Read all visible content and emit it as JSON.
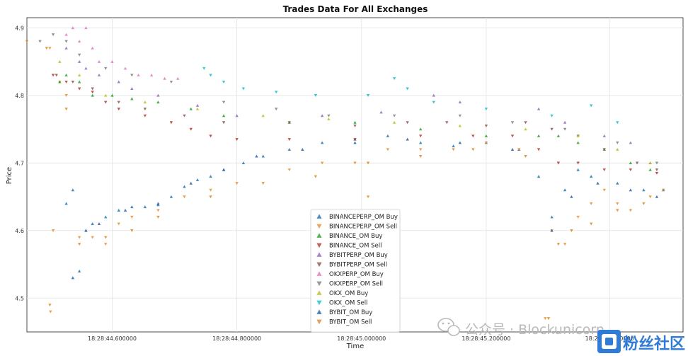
{
  "chart_data": {
    "type": "scatter",
    "title": "Trades Data For All Exchanges",
    "xlabel": "Time",
    "ylabel": "Price",
    "ylim": [
      4.45,
      4.915
    ],
    "xlim": [
      0,
      1
    ],
    "x_ticks": [
      {
        "label": "18:28:44.600000",
        "value": 0.13
      },
      {
        "label": "18:28:44.800000",
        "value": 0.32
      },
      {
        "label": "18:28:45.000000",
        "value": 0.51
      },
      {
        "label": "18:28:45.200000",
        "value": 0.7
      },
      {
        "label": "18:28:45.400000",
        "value": 0.888
      }
    ],
    "y_ticks": [
      4.5,
      4.6,
      4.7,
      4.8,
      4.9
    ],
    "grid": true,
    "legend_position": "lower-center",
    "series": [
      {
        "name": "BINANCEPERP_OM Buy",
        "marker": "triangle-up",
        "color": "#1f77b4",
        "points": [
          [
            0.06,
            4.64
          ],
          [
            0.07,
            4.66
          ],
          [
            0.08,
            4.54
          ],
          [
            0.09,
            4.6
          ],
          [
            0.1,
            4.61
          ],
          [
            0.12,
            4.62
          ],
          [
            0.14,
            4.63
          ],
          [
            0.16,
            4.635
          ],
          [
            0.18,
            4.635
          ],
          [
            0.2,
            4.638
          ],
          [
            0.22,
            4.65
          ],
          [
            0.24,
            4.665
          ],
          [
            0.26,
            4.675
          ],
          [
            0.28,
            4.68
          ],
          [
            0.3,
            4.69
          ],
          [
            0.33,
            4.7
          ],
          [
            0.36,
            4.71
          ],
          [
            0.4,
            4.72
          ],
          [
            0.45,
            4.73
          ],
          [
            0.5,
            4.735
          ],
          [
            0.55,
            4.74
          ],
          [
            0.6,
            4.73
          ],
          [
            0.65,
            4.725
          ],
          [
            0.7,
            4.73
          ],
          [
            0.75,
            4.72
          ],
          [
            0.78,
            4.68
          ],
          [
            0.8,
            4.62
          ],
          [
            0.82,
            4.66
          ],
          [
            0.84,
            4.69
          ],
          [
            0.86,
            4.68
          ],
          [
            0.9,
            4.67
          ],
          [
            0.94,
            4.66
          ],
          [
            0.97,
            4.66
          ]
        ]
      },
      {
        "name": "BINANCEPERP_OM Sell",
        "marker": "triangle-down",
        "color": "#e69138",
        "points": [
          [
            0.035,
            4.87
          ],
          [
            0.036,
            4.48
          ],
          [
            0.04,
            4.6
          ],
          [
            0.05,
            4.82
          ],
          [
            0.06,
            4.8
          ],
          [
            0.08,
            4.59
          ],
          [
            0.1,
            4.59
          ],
          [
            0.12,
            4.58
          ],
          [
            0.14,
            4.61
          ],
          [
            0.16,
            4.62
          ],
          [
            0.2,
            4.63
          ],
          [
            0.24,
            4.65
          ],
          [
            0.28,
            4.66
          ],
          [
            0.32,
            4.67
          ],
          [
            0.4,
            4.69
          ],
          [
            0.45,
            4.7
          ],
          [
            0.5,
            4.7
          ],
          [
            0.52,
            4.65
          ],
          [
            0.55,
            4.72
          ],
          [
            0.6,
            4.72
          ],
          [
            0.65,
            4.72
          ],
          [
            0.7,
            4.73
          ],
          [
            0.75,
            4.72
          ],
          [
            0.79,
            4.47
          ],
          [
            0.8,
            4.6
          ],
          [
            0.82,
            4.58
          ],
          [
            0.84,
            4.62
          ],
          [
            0.86,
            4.64
          ],
          [
            0.88,
            4.66
          ],
          [
            0.9,
            4.64
          ],
          [
            0.92,
            4.63
          ],
          [
            0.95,
            4.65
          ]
        ]
      },
      {
        "name": "BINANCE_OM Buy",
        "marker": "triangle-up",
        "color": "#2ca02c",
        "points": [
          [
            0.05,
            4.82
          ],
          [
            0.06,
            4.83
          ],
          [
            0.08,
            4.82
          ],
          [
            0.1,
            4.8
          ],
          [
            0.13,
            4.8
          ],
          [
            0.16,
            4.795
          ],
          [
            0.2,
            4.79
          ],
          [
            0.25,
            4.78
          ],
          [
            0.3,
            4.77
          ],
          [
            0.4,
            4.76
          ],
          [
            0.5,
            4.76
          ],
          [
            0.6,
            4.75
          ],
          [
            0.7,
            4.74
          ],
          [
            0.78,
            4.74
          ],
          [
            0.81,
            4.74
          ],
          [
            0.84,
            4.73
          ],
          [
            0.88,
            4.72
          ],
          [
            0.92,
            4.7
          ],
          [
            0.95,
            4.69
          ]
        ]
      },
      {
        "name": "BINANCE_OM Sell",
        "marker": "triangle-down",
        "color": "#b03a2e",
        "points": [
          [
            0.04,
            4.83
          ],
          [
            0.06,
            4.82
          ],
          [
            0.08,
            4.81
          ],
          [
            0.1,
            4.805
          ],
          [
            0.12,
            4.79
          ],
          [
            0.14,
            4.78
          ],
          [
            0.18,
            4.77
          ],
          [
            0.22,
            4.76
          ],
          [
            0.25,
            4.75
          ],
          [
            0.28,
            4.74
          ],
          [
            0.32,
            4.735
          ],
          [
            0.4,
            4.735
          ],
          [
            0.5,
            4.735
          ],
          [
            0.6,
            4.74
          ],
          [
            0.68,
            4.74
          ],
          [
            0.74,
            4.74
          ],
          [
            0.78,
            4.72
          ],
          [
            0.81,
            4.7
          ],
          [
            0.84,
            4.7
          ],
          [
            0.88,
            4.69
          ],
          [
            0.92,
            4.69
          ],
          [
            0.96,
            4.685
          ]
        ]
      },
      {
        "name": "BYBITPERP_OM Buy",
        "marker": "triangle-up",
        "color": "#9467bd",
        "points": [
          [
            0.06,
            4.87
          ],
          [
            0.08,
            4.85
          ],
          [
            0.09,
            4.84
          ],
          [
            0.11,
            4.83
          ],
          [
            0.14,
            4.82
          ],
          [
            0.16,
            4.81
          ],
          [
            0.2,
            4.8
          ],
          [
            0.26,
            4.785
          ],
          [
            0.32,
            4.77
          ],
          [
            0.45,
            4.77
          ],
          [
            0.54,
            4.775
          ],
          [
            0.62,
            4.8
          ],
          [
            0.66,
            4.79
          ],
          [
            0.78,
            4.78
          ],
          [
            0.82,
            4.76
          ],
          [
            0.88,
            4.74
          ],
          [
            0.92,
            4.73
          ],
          [
            0.95,
            4.7
          ]
        ]
      },
      {
        "name": "BYBITPERP_OM Sell",
        "marker": "triangle-down",
        "color": "#8c564b",
        "points": [
          [
            0.045,
            4.83
          ],
          [
            0.07,
            4.82
          ],
          [
            0.1,
            4.81
          ],
          [
            0.14,
            4.79
          ],
          [
            0.18,
            4.78
          ],
          [
            0.24,
            4.77
          ],
          [
            0.3,
            4.76
          ],
          [
            0.4,
            4.76
          ],
          [
            0.5,
            4.755
          ],
          [
            0.58,
            4.76
          ],
          [
            0.64,
            4.76
          ],
          [
            0.7,
            4.755
          ],
          [
            0.76,
            4.76
          ],
          [
            0.8,
            4.75
          ],
          [
            0.84,
            4.74
          ],
          [
            0.88,
            4.72
          ],
          [
            0.93,
            4.7
          ],
          [
            0.96,
            4.69
          ]
        ]
      },
      {
        "name": "OKXPERP_OM Buy",
        "marker": "triangle-up",
        "color": "#e377c2",
        "points": [
          [
            0.06,
            4.89
          ],
          [
            0.07,
            4.9
          ],
          [
            0.08,
            4.88
          ],
          [
            0.09,
            4.9
          ],
          [
            0.1,
            4.87
          ],
          [
            0.11,
            4.85
          ],
          [
            0.13,
            4.85
          ],
          [
            0.15,
            4.84
          ],
          [
            0.17,
            4.83
          ],
          [
            0.19,
            4.83
          ],
          [
            0.21,
            4.825
          ],
          [
            0.23,
            4.825
          ]
        ]
      },
      {
        "name": "OKXPERP_OM Sell",
        "marker": "triangle-down",
        "color": "#7f7f7f",
        "points": [
          [
            0.02,
            4.88
          ],
          [
            0.04,
            4.89
          ],
          [
            0.06,
            4.88
          ],
          [
            0.08,
            4.86
          ],
          [
            0.12,
            4.84
          ],
          [
            0.16,
            4.83
          ],
          [
            0.22,
            4.82
          ],
          [
            0.3,
            4.79
          ],
          [
            0.38,
            4.78
          ],
          [
            0.46,
            4.77
          ],
          [
            0.56,
            4.77
          ],
          [
            0.66,
            4.77
          ],
          [
            0.74,
            4.76
          ],
          [
            0.82,
            4.75
          ],
          [
            0.9,
            4.73
          ],
          [
            0.96,
            4.7
          ]
        ]
      },
      {
        "name": "OKX_OM Buy",
        "marker": "triangle-up",
        "color": "#bcbd22",
        "points": [
          [
            0.05,
            4.85
          ],
          [
            0.08,
            4.83
          ],
          [
            0.12,
            4.8
          ],
          [
            0.18,
            4.79
          ],
          [
            0.26,
            4.78
          ],
          [
            0.36,
            4.77
          ],
          [
            0.46,
            4.765
          ],
          [
            0.56,
            4.76
          ],
          [
            0.66,
            4.755
          ],
          [
            0.76,
            4.75
          ],
          [
            0.84,
            4.74
          ],
          [
            0.9,
            4.72
          ],
          [
            0.95,
            4.7
          ]
        ]
      },
      {
        "name": "OKX_OM Sell",
        "marker": "triangle-down",
        "color": "#17becf",
        "points": [
          [
            0.27,
            4.84
          ],
          [
            0.28,
            4.83
          ],
          [
            0.3,
            4.82
          ],
          [
            0.33,
            4.81
          ],
          [
            0.38,
            4.805
          ],
          [
            0.44,
            4.8
          ],
          [
            0.52,
            4.8
          ],
          [
            0.56,
            4.825
          ],
          [
            0.58,
            4.81
          ],
          [
            0.62,
            4.79
          ],
          [
            0.7,
            4.78
          ],
          [
            0.8,
            4.77
          ],
          [
            0.86,
            4.785
          ],
          [
            0.9,
            4.76
          ]
        ]
      },
      {
        "name": "BYBIT_OM Buy",
        "marker": "triangle-up",
        "color": "#2b5fa8",
        "points": [
          [
            0.07,
            4.53
          ],
          [
            0.09,
            4.6
          ],
          [
            0.11,
            4.61
          ],
          [
            0.15,
            4.63
          ],
          [
            0.2,
            4.64
          ],
          [
            0.25,
            4.67
          ],
          [
            0.3,
            4.69
          ],
          [
            0.35,
            4.71
          ],
          [
            0.42,
            4.72
          ],
          [
            0.5,
            4.73
          ],
          [
            0.58,
            4.735
          ],
          [
            0.66,
            4.73
          ],
          [
            0.74,
            4.72
          ],
          [
            0.8,
            4.6
          ],
          [
            0.83,
            4.65
          ],
          [
            0.87,
            4.67
          ],
          [
            0.92,
            4.66
          ],
          [
            0.96,
            4.65
          ]
        ]
      },
      {
        "name": "BYBIT_OM Sell",
        "marker": "triangle-down",
        "color": "#d9892b",
        "points": [
          [
            0.0,
            4.88
          ],
          [
            0.03,
            4.87
          ],
          [
            0.035,
            4.49
          ],
          [
            0.06,
            4.78
          ],
          [
            0.08,
            4.58
          ],
          [
            0.12,
            4.59
          ],
          [
            0.16,
            4.6
          ],
          [
            0.2,
            4.62
          ],
          [
            0.28,
            4.65
          ],
          [
            0.36,
            4.67
          ],
          [
            0.44,
            4.68
          ],
          [
            0.52,
            4.7
          ],
          [
            0.6,
            4.71
          ],
          [
            0.68,
            4.72
          ],
          [
            0.76,
            4.71
          ],
          [
            0.795,
            4.47
          ],
          [
            0.81,
            4.58
          ],
          [
            0.83,
            4.6
          ],
          [
            0.86,
            4.61
          ],
          [
            0.9,
            4.63
          ],
          [
            0.94,
            4.64
          ],
          [
            0.97,
            4.66
          ]
        ]
      }
    ]
  },
  "watermark": {
    "text": "公众号 · Blockunicorn",
    "logo_text": "粉丝社区",
    "logo_color": "#2f7bd6"
  }
}
